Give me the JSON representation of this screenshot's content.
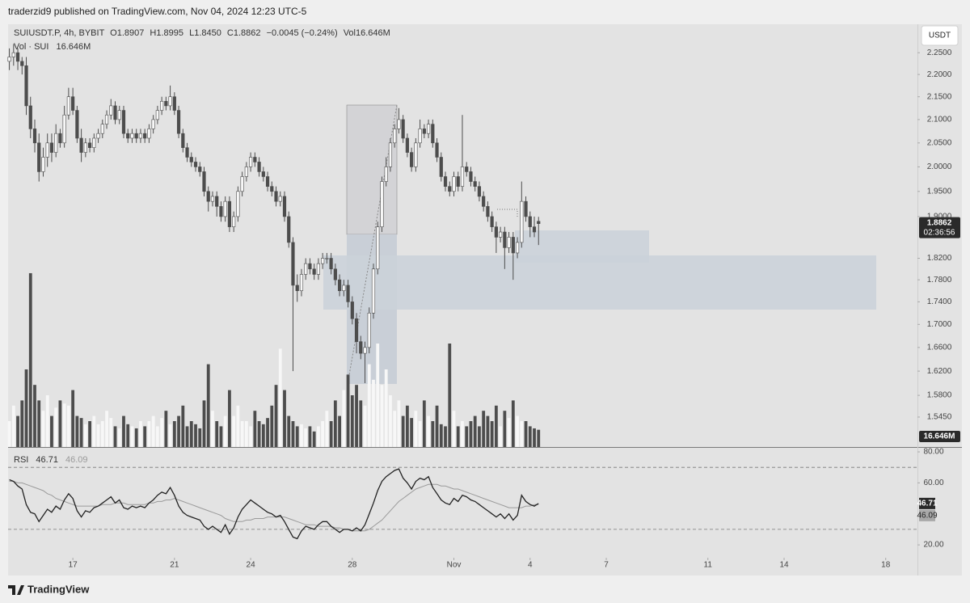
{
  "header": {
    "publisher": "traderzid9 published on TradingView.com, Nov 04, 2024 12:23 UTC-5"
  },
  "footer": {
    "brand": "TradingView"
  },
  "chart_data": {
    "type": "candlestick",
    "symbol": "SUIUSDT.P, 4h, BYBIT",
    "ohlc_header": [
      "O1.8907",
      "H1.8995",
      "L1.8450",
      "C1.8862"
    ],
    "change_text": "−0.0045 (−0.24%)",
    "volume_header": "Vol16.646M",
    "volume_legend": "Vol · SUI",
    "volume_label": "16.646M",
    "currency": "USDT",
    "countdown": "02:36:56",
    "log_scale": true,
    "up_color": "#f7f7f7",
    "down_color": "#4d4d4d",
    "wick_color": "#4d4d4d",
    "ylim": [
      1.498,
      2.317
    ],
    "yticks": [
      {
        "value": 2.25,
        "label": "2.2500"
      },
      {
        "value": 2.2,
        "label": "2.2000"
      },
      {
        "value": 2.15,
        "label": "2.1500"
      },
      {
        "value": 2.1,
        "label": "2.1000"
      },
      {
        "value": 2.05,
        "label": "2.0500"
      },
      {
        "value": 2.0,
        "label": "2.0000"
      },
      {
        "value": 1.95,
        "label": "1.9500"
      },
      {
        "value": 1.9,
        "label": "1.9000"
      },
      {
        "value": 1.82,
        "label": "1.8200"
      },
      {
        "value": 1.78,
        "label": "1.7800"
      },
      {
        "value": 1.74,
        "label": "1.7400"
      },
      {
        "value": 1.7,
        "label": "1.7000"
      },
      {
        "value": 1.66,
        "label": "1.6600"
      },
      {
        "value": 1.62,
        "label": "1.6200"
      },
      {
        "value": 1.58,
        "label": "1.5800"
      },
      {
        "value": 1.545,
        "label": "1.5450"
      }
    ],
    "xlim": [
      -0.3,
      214.5
    ],
    "xticks": [
      {
        "value": 15,
        "label": "17"
      },
      {
        "value": 39,
        "label": "21"
      },
      {
        "value": 57,
        "label": "24"
      },
      {
        "value": 81,
        "label": "28"
      },
      {
        "value": 105,
        "label": "Nov"
      },
      {
        "value": 123,
        "label": "4"
      },
      {
        "value": 141,
        "label": "7"
      },
      {
        "value": 165,
        "label": "11"
      },
      {
        "value": 183,
        "label": "14"
      },
      {
        "value": 207,
        "label": "18"
      }
    ],
    "open": [
      2.23,
      2.24,
      2.25,
      2.23,
      2.22,
      2.13,
      2.08,
      2.05,
      1.99,
      2.02,
      2.05,
      2.03,
      2.07,
      2.05,
      2.11,
      2.15,
      2.12,
      2.06,
      2.03,
      2.05,
      2.04,
      2.06,
      2.07,
      2.09,
      2.11,
      2.13,
      2.1,
      2.12,
      2.07,
      2.06,
      2.07,
      2.06,
      2.07,
      2.06,
      2.08,
      2.1,
      2.12,
      2.14,
      2.13,
      2.15,
      2.12,
      2.07,
      2.04,
      2.02,
      2.01,
      2.0,
      1.99,
      1.95,
      1.93,
      1.94,
      1.92,
      1.9,
      1.93,
      1.88,
      1.9,
      1.95,
      1.98,
      2.0,
      2.02,
      2.01,
      1.99,
      1.98,
      1.96,
      1.95,
      1.93,
      1.94,
      1.9,
      1.85,
      1.77,
      1.76,
      1.79,
      1.81,
      1.8,
      1.79,
      1.81,
      1.82,
      1.82,
      1.8,
      1.78,
      1.76,
      1.77,
      1.74,
      1.71,
      1.67,
      1.65,
      1.66,
      1.72,
      1.8,
      1.88,
      1.97,
      2.0,
      2.05,
      2.08,
      2.1,
      2.06,
      2.03,
      2.0,
      2.05,
      2.08,
      2.07,
      2.09,
      2.05,
      2.02,
      1.98,
      1.96,
      1.95,
      1.98,
      1.96,
      2.0,
      1.99,
      1.97,
      1.96,
      1.94,
      1.92,
      1.9,
      1.88,
      1.86,
      1.87,
      1.84,
      1.86,
      1.83,
      1.85,
      1.93,
      1.9,
      1.88,
      1.8907
    ],
    "high": [
      2.26,
      2.27,
      2.26,
      2.24,
      2.24,
      2.15,
      2.1,
      2.07,
      2.04,
      2.07,
      2.07,
      2.09,
      2.08,
      2.13,
      2.17,
      2.17,
      2.13,
      2.08,
      2.06,
      2.06,
      2.07,
      2.08,
      2.1,
      2.12,
      2.145,
      2.14,
      2.13,
      2.13,
      2.08,
      2.08,
      2.08,
      2.08,
      2.08,
      2.09,
      2.11,
      2.13,
      2.15,
      2.15,
      2.175,
      2.16,
      2.13,
      2.08,
      2.05,
      2.03,
      2.02,
      2.01,
      2.0,
      1.96,
      1.95,
      1.95,
      1.93,
      1.94,
      1.94,
      1.91,
      1.96,
      1.99,
      2.01,
      2.03,
      2.03,
      2.02,
      2.0,
      1.99,
      1.97,
      1.96,
      1.95,
      1.95,
      1.91,
      1.86,
      1.79,
      1.8,
      1.82,
      1.82,
      1.81,
      1.82,
      1.83,
      1.83,
      1.83,
      1.81,
      1.79,
      1.78,
      1.78,
      1.75,
      1.72,
      1.68,
      1.67,
      1.73,
      1.81,
      1.89,
      1.98,
      2.02,
      2.06,
      2.09,
      2.125,
      2.11,
      2.07,
      2.04,
      2.06,
      2.1,
      2.09,
      2.1,
      2.1,
      2.06,
      2.03,
      1.99,
      1.97,
      1.99,
      1.99,
      2.11,
      2.01,
      2.0,
      1.98,
      1.97,
      1.95,
      1.93,
      1.91,
      1.89,
      1.88,
      1.88,
      1.87,
      1.87,
      1.86,
      1.97,
      1.94,
      1.91,
      1.9,
      1.8995
    ],
    "low": [
      2.21,
      2.22,
      2.21,
      2.2,
      2.11,
      2.06,
      2.03,
      1.97,
      1.98,
      2.0,
      2.01,
      2.02,
      2.04,
      2.04,
      2.1,
      2.11,
      2.05,
      2.01,
      2.02,
      2.03,
      2.03,
      2.05,
      2.06,
      2.08,
      2.1,
      2.09,
      2.09,
      2.06,
      2.05,
      2.05,
      2.05,
      2.05,
      2.05,
      2.05,
      2.07,
      2.09,
      2.11,
      2.12,
      2.12,
      2.11,
      2.06,
      2.03,
      2.01,
      2.0,
      1.99,
      1.98,
      1.94,
      1.91,
      1.92,
      1.9,
      1.89,
      1.89,
      1.87,
      1.87,
      1.89,
      1.94,
      1.97,
      1.99,
      2.0,
      1.98,
      1.97,
      1.95,
      1.94,
      1.92,
      1.92,
      1.89,
      1.84,
      1.62,
      1.74,
      1.75,
      1.78,
      1.79,
      1.78,
      1.78,
      1.8,
      1.81,
      1.79,
      1.77,
      1.75,
      1.75,
      1.73,
      1.7,
      1.65,
      1.64,
      1.6,
      1.65,
      1.71,
      1.79,
      1.87,
      1.96,
      1.99,
      2.04,
      2.07,
      2.05,
      2.02,
      1.99,
      1.99,
      2.04,
      2.06,
      2.06,
      2.04,
      2.01,
      1.97,
      1.95,
      1.94,
      1.94,
      1.95,
      1.95,
      1.98,
      1.96,
      1.95,
      1.93,
      1.91,
      1.89,
      1.87,
      1.83,
      1.85,
      1.8,
      1.83,
      1.78,
      1.82,
      1.84,
      1.89,
      1.86,
      1.86,
      1.845
    ],
    "close": [
      2.24,
      2.25,
      2.23,
      2.22,
      2.13,
      2.08,
      2.05,
      1.99,
      2.02,
      2.05,
      2.03,
      2.07,
      2.05,
      2.11,
      2.15,
      2.12,
      2.06,
      2.03,
      2.05,
      2.04,
      2.06,
      2.07,
      2.09,
      2.11,
      2.13,
      2.1,
      2.12,
      2.07,
      2.06,
      2.07,
      2.06,
      2.07,
      2.06,
      2.08,
      2.1,
      2.12,
      2.14,
      2.13,
      2.15,
      2.12,
      2.07,
      2.04,
      2.02,
      2.01,
      2.0,
      1.99,
      1.95,
      1.93,
      1.94,
      1.92,
      1.9,
      1.93,
      1.88,
      1.9,
      1.95,
      1.98,
      2.0,
      2.02,
      2.01,
      1.99,
      1.98,
      1.96,
      1.95,
      1.93,
      1.94,
      1.9,
      1.85,
      1.77,
      1.76,
      1.79,
      1.81,
      1.8,
      1.79,
      1.81,
      1.82,
      1.82,
      1.8,
      1.78,
      1.76,
      1.77,
      1.74,
      1.71,
      1.67,
      1.65,
      1.66,
      1.72,
      1.8,
      1.88,
      1.97,
      2.0,
      2.05,
      2.08,
      2.1,
      2.06,
      2.03,
      2.0,
      2.05,
      2.08,
      2.07,
      2.09,
      2.05,
      2.02,
      1.98,
      1.96,
      1.95,
      1.98,
      1.96,
      2.0,
      1.99,
      1.97,
      1.96,
      1.94,
      1.92,
      1.9,
      1.88,
      1.86,
      1.87,
      1.84,
      1.86,
      1.83,
      1.85,
      1.93,
      1.9,
      1.88,
      1.87,
      1.8862
    ],
    "volume": [
      25,
      40,
      30,
      45,
      75,
      168,
      60,
      45,
      35,
      50,
      30,
      38,
      45,
      42,
      40,
      55,
      30,
      28,
      22,
      25,
      30,
      22,
      25,
      35,
      28,
      20,
      18,
      30,
      22,
      20,
      18,
      25,
      20,
      25,
      30,
      20,
      28,
      35,
      22,
      25,
      30,
      40,
      20,
      25,
      22,
      18,
      45,
      80,
      35,
      25,
      20,
      30,
      55,
      30,
      40,
      25,
      25,
      20,
      35,
      25,
      22,
      28,
      40,
      60,
      95,
      55,
      30,
      25,
      20,
      22,
      18,
      20,
      15,
      20,
      25,
      35,
      25,
      45,
      30,
      55,
      70,
      50,
      60,
      45,
      40,
      80,
      65,
      100,
      60,
      75,
      50,
      35,
      45,
      30,
      40,
      28,
      35,
      25,
      45,
      30,
      25,
      40,
      22,
      20,
      100,
      35,
      20,
      25,
      20,
      25,
      30,
      20,
      35,
      30,
      25,
      40,
      20,
      35,
      28,
      45,
      30,
      25,
      25,
      20,
      18,
      16.646
    ],
    "volume_ylim": [
      0,
      200
    ],
    "rsi": {
      "name": "RSI",
      "color": "#222222",
      "ma_color": "#9a9a9a",
      "ylim": [
        11.7,
        82.1
      ],
      "yticks": [
        {
          "value": 80,
          "label": "80.00"
        },
        {
          "value": 60,
          "label": "60.00"
        },
        {
          "value": 20,
          "label": "20.00"
        }
      ],
      "bands": [
        70,
        30
      ],
      "values": [
        62,
        61,
        58,
        56,
        46,
        41,
        40,
        35,
        39,
        43,
        41,
        45,
        43,
        49,
        53,
        50,
        42,
        38,
        42,
        41,
        44,
        45,
        47,
        49,
        51,
        47,
        49,
        44,
        43,
        45,
        44,
        45,
        44,
        47,
        49,
        52,
        54,
        53,
        57,
        52,
        45,
        41,
        39,
        38,
        37,
        36,
        32,
        30,
        32,
        30,
        28,
        33,
        27,
        31,
        38,
        43,
        46,
        49,
        47,
        45,
        43,
        41,
        40,
        38,
        39,
        35,
        30,
        25,
        24,
        29,
        32,
        31,
        30,
        33,
        35,
        35,
        32,
        30,
        28,
        30,
        30,
        29,
        31,
        29,
        33,
        40,
        47,
        55,
        61,
        64,
        66,
        68,
        69,
        63,
        60,
        56,
        61,
        63,
        62,
        64,
        57,
        53,
        49,
        47,
        46,
        50,
        48,
        52,
        51,
        49,
        48,
        46,
        44,
        42,
        40,
        38,
        40,
        37,
        40,
        36,
        39,
        52,
        48,
        46,
        45,
        46.71
      ],
      "ma_values": [
        61,
        61,
        60,
        60,
        59,
        58,
        57,
        56,
        55,
        53,
        52,
        50,
        49,
        48,
        47,
        46,
        45,
        45,
        45,
        45,
        45,
        45,
        46,
        46,
        46,
        47,
        47,
        47,
        46,
        46,
        46,
        46,
        46,
        47,
        47,
        48,
        48,
        49,
        49,
        50,
        49,
        48,
        47,
        46,
        45,
        44,
        43,
        42,
        41,
        40,
        39,
        37,
        36,
        35,
        35,
        35,
        36,
        36,
        37,
        37,
        37,
        38,
        38,
        38,
        38,
        38,
        37,
        36,
        35,
        34,
        33,
        33,
        33,
        32,
        32,
        32,
        32,
        31,
        31,
        30,
        30,
        29,
        29,
        29,
        29,
        30,
        32,
        34,
        36,
        39,
        42,
        45,
        48,
        50,
        52,
        54,
        56,
        57,
        58,
        59,
        59,
        59,
        58,
        58,
        57,
        56,
        56,
        55,
        54,
        53,
        52,
        51,
        50,
        49,
        48,
        47,
        46,
        45,
        44,
        44,
        44,
        44,
        45,
        45,
        46,
        46.09
      ]
    }
  }
}
